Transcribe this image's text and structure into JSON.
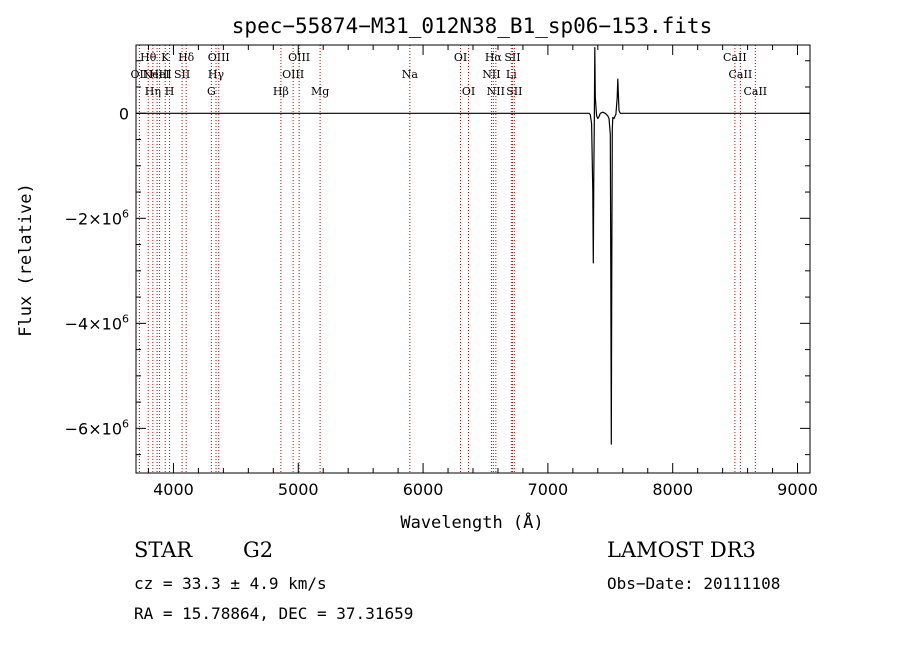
{
  "chart_data": {
    "type": "line",
    "title": "spec−55874−M31_012N38_B1_sp06−153.fits",
    "xlabel": "Wavelength (Å)",
    "ylabel": "Flux (relative)",
    "xlim": [
      3700,
      9100
    ],
    "ylim": [
      -6850000,
      1300000
    ],
    "x_ticks": [
      {
        "value": 4000,
        "label": "4000"
      },
      {
        "value": 5000,
        "label": "5000"
      },
      {
        "value": 6000,
        "label": "6000"
      },
      {
        "value": 7000,
        "label": "7000"
      },
      {
        "value": 8000,
        "label": "8000"
      },
      {
        "value": 9000,
        "label": "9000"
      }
    ],
    "y_ticks": [
      {
        "value": 0,
        "mantissa": "0",
        "exponent": ""
      },
      {
        "value": -2000000,
        "mantissa": "−2×10",
        "exponent": "6"
      },
      {
        "value": -4000000,
        "mantissa": "−4×10",
        "exponent": "6"
      },
      {
        "value": -6000000,
        "mantissa": "−6×10",
        "exponent": "6"
      }
    ],
    "series": [
      {
        "color": "#000000",
        "x": [
          3700,
          7330,
          7340,
          7350,
          7360,
          7364,
          7368,
          7372,
          7376,
          7380,
          7390,
          7400,
          7410,
          7420,
          7440,
          7460,
          7480,
          7490,
          7500,
          7504,
          7508,
          7512,
          7516,
          7520,
          7530,
          7545,
          7555,
          7560,
          7565,
          7570,
          7580,
          7590,
          9100
        ],
        "y": [
          0,
          0,
          -30000,
          -200000,
          -1500000,
          -2850000,
          -1200000,
          -200000,
          1250000,
          300000,
          -50000,
          -100000,
          -60000,
          0,
          20000,
          0,
          -50000,
          -100000,
          -400000,
          -3000000,
          -6300000,
          -2800000,
          -300000,
          -80000,
          -100000,
          -20000,
          300000,
          650000,
          350000,
          50000,
          0,
          0,
          0
        ]
      }
    ],
    "line_color": "#cc0000",
    "lines": [
      {
        "wave": 3727,
        "label": "OII",
        "row": 1
      },
      {
        "wave": 3798,
        "label": "Hθ",
        "row": 0
      },
      {
        "wave": 3835,
        "label": "Hη",
        "row": 2
      },
      {
        "wave": 3869,
        "label": "NeIII",
        "row": 1
      },
      {
        "wave": 3889,
        "label": "HeI",
        "row": 1
      },
      {
        "wave": 3934,
        "label": "K",
        "row": 0
      },
      {
        "wave": 3969,
        "label": "H",
        "row": 2
      },
      {
        "wave": 4069,
        "label": "SII",
        "row": 1
      },
      {
        "wave": 4102,
        "label": "Hδ",
        "row": 0
      },
      {
        "wave": 4304,
        "label": "G",
        "row": 2
      },
      {
        "wave": 4341,
        "label": "Hγ",
        "row": 1
      },
      {
        "wave": 4363,
        "label": "OIII",
        "row": 0
      },
      {
        "wave": 4861,
        "label": "Hβ",
        "row": 2
      },
      {
        "wave": 4959,
        "label": "OIII",
        "row": 1
      },
      {
        "wave": 5007,
        "label": "OIII",
        "row": 0
      },
      {
        "wave": 5175,
        "label": "Mg",
        "row": 2
      },
      {
        "wave": 5894,
        "label": "Na",
        "row": 1
      },
      {
        "wave": 6300,
        "label": "OI",
        "row": 0
      },
      {
        "wave": 6364,
        "label": "OI",
        "row": 2
      },
      {
        "wave": 6548,
        "label": "NII",
        "row": 1
      },
      {
        "wave": 6563,
        "label": "Hα",
        "row": 0
      },
      {
        "wave": 6583,
        "label": "NII",
        "row": 2
      },
      {
        "wave": 6707,
        "label": "Li",
        "row": 1
      },
      {
        "wave": 6716,
        "label": "SII",
        "row": 0
      },
      {
        "wave": 6731,
        "label": "SII",
        "row": 2
      },
      {
        "wave": 8498,
        "label": "CaII",
        "row": 0
      },
      {
        "wave": 8542,
        "label": "CaII",
        "row": 1
      },
      {
        "wave": 8662,
        "label": "CaII",
        "row": 2
      }
    ]
  },
  "info": {
    "class_label": "STAR",
    "subclass_label": "G2",
    "survey": "LAMOST DR3",
    "cz": "cz = 33.3 ± 4.9 km/s",
    "obs_date": "Obs−Date: 20111108",
    "radec": "RA =  15.78864, DEC =  37.31659"
  }
}
